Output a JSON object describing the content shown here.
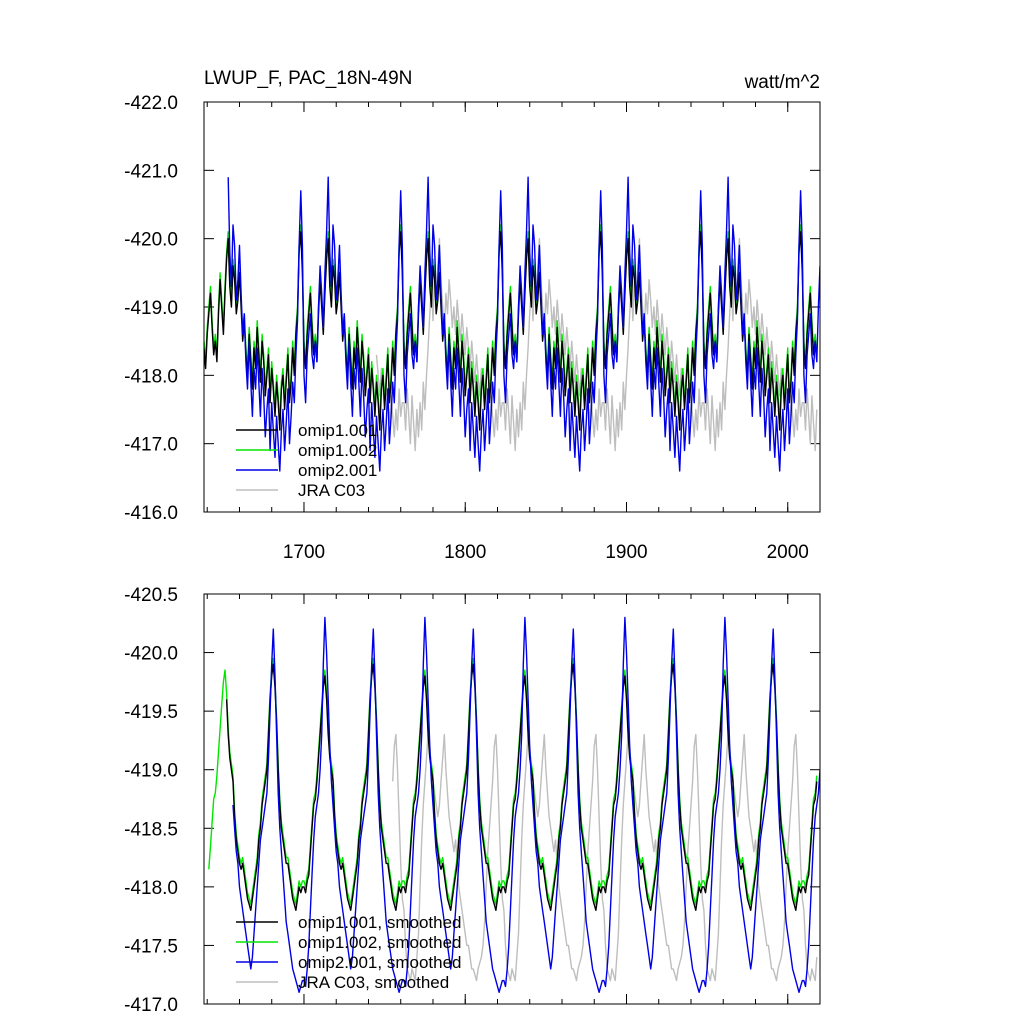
{
  "colors": {
    "omip1_001": "#000000",
    "omip1_002": "#00e600",
    "omip2_001": "#0000e6",
    "jra": "#bebebe"
  },
  "chart_data": [
    {
      "type": "line",
      "title": "LWUP_F, PAC_18N-49N",
      "units": "watt/m^2",
      "xlim": [
        1638,
        2020
      ],
      "ylim": [
        -422.0,
        -416.0
      ],
      "x_ticks": [
        1700,
        1800,
        1900,
        2000
      ],
      "y_ticks": [
        -416.0,
        -417.0,
        -418.0,
        -419.0,
        -420.0,
        -421.0,
        -422.0
      ],
      "y_tick_labels": [
        "-416.0",
        "-417.0",
        "-418.0",
        "-419.0",
        "-420.0",
        "-421.0",
        "-422.0"
      ],
      "x_tick_labels": [
        "1700",
        "1800",
        "1900",
        "2000"
      ],
      "legend": [
        "omip1.001",
        "omip1.002",
        "omip2.001",
        "JRA C03"
      ],
      "legend_position": "bottom-left",
      "cycle_years": 62,
      "series": [
        {
          "name": "omip1.001",
          "start": 1638,
          "end": 2018,
          "cycle": [
            -418.4,
            -418.1,
            -418.6,
            -418.9,
            -419.2,
            -418.7,
            -418.3,
            -418.5,
            -418.2,
            -418.9,
            -419.4,
            -419.0,
            -418.6,
            -419.2,
            -419.7,
            -420.0,
            -419.3,
            -419.0,
            -419.6,
            -419.4,
            -418.9,
            -419.1,
            -419.5,
            -419.0,
            -418.5,
            -418.8,
            -418.3,
            -418.0,
            -418.6,
            -418.2,
            -417.8,
            -418.4,
            -418.1,
            -418.7,
            -418.3,
            -417.9,
            -418.5,
            -418.2,
            -417.7,
            -418.0,
            -418.3,
            -417.6,
            -418.1,
            -417.8,
            -417.4,
            -417.9,
            -417.6,
            -417.2,
            -417.8,
            -418.0,
            -417.5,
            -417.9,
            -418.3,
            -417.6,
            -417.9,
            -418.4,
            -418.0,
            -418.6,
            -418.9,
            -419.8,
            -420.1,
            -419.5
          ]
        },
        {
          "name": "omip1.002",
          "start": 1638,
          "end": 2018,
          "cycle": [
            -418.5,
            -418.2,
            -418.7,
            -419.0,
            -419.3,
            -418.8,
            -418.4,
            -418.6,
            -418.3,
            -419.0,
            -419.5,
            -419.1,
            -418.7,
            -419.3,
            -419.8,
            -420.1,
            -419.4,
            -419.1,
            -419.7,
            -419.5,
            -419.0,
            -419.2,
            -419.6,
            -419.1,
            -418.6,
            -418.9,
            -418.4,
            -418.1,
            -418.7,
            -418.3,
            -417.9,
            -418.5,
            -418.2,
            -418.8,
            -418.4,
            -418.0,
            -418.6,
            -418.3,
            -417.8,
            -418.1,
            -418.4,
            -417.7,
            -418.2,
            -417.9,
            -417.5,
            -418.0,
            -417.7,
            -417.3,
            -417.9,
            -418.1,
            -417.6,
            -418.0,
            -418.4,
            -417.7,
            -418.0,
            -418.5,
            -418.1,
            -418.7,
            -419.0,
            -419.9,
            -420.2,
            -419.6
          ]
        },
        {
          "name": "omip2.001",
          "start": 1653,
          "end": 2020,
          "cycle": [
            -418.0,
            -417.6,
            -418.3,
            -418.6,
            -418.9,
            -418.3,
            -418.1,
            -418.5,
            -418.2,
            -419.0,
            -419.6,
            -419.2,
            -418.7,
            -419.5,
            -420.1,
            -420.9,
            -419.8,
            -419.3,
            -420.2,
            -419.9,
            -419.1,
            -419.4,
            -419.9,
            -419.2,
            -418.6,
            -418.9,
            -418.2,
            -417.8,
            -418.5,
            -417.9,
            -417.4,
            -418.1,
            -417.8,
            -418.4,
            -417.9,
            -417.4,
            -418.1,
            -417.7,
            -417.1,
            -417.5,
            -417.8,
            -416.9,
            -417.6,
            -417.2,
            -416.8,
            -417.4,
            -417.0,
            -416.6,
            -417.2,
            -417.5,
            -416.9,
            -417.3,
            -417.8,
            -417.0,
            -417.4,
            -417.9,
            -417.6,
            -418.3,
            -418.8,
            -419.9,
            -420.7,
            -419.9
          ]
        },
        {
          "name": "JRA C03",
          "start": 1745,
          "end": 2018,
          "cycle": [
            -417.6,
            -417.2,
            -417.8,
            -417.4,
            -417.0,
            -417.7,
            -417.3,
            -416.9,
            -417.5,
            -417.1,
            -417.6,
            -417.2,
            -417.9,
            -417.5,
            -418.0,
            -418.4,
            -418.9,
            -419.3,
            -418.8,
            -419.5,
            -419.1,
            -419.6,
            -420.0,
            -419.4,
            -419.0,
            -418.6,
            -419.2,
            -418.9,
            -419.4,
            -419.1,
            -418.7,
            -419.0,
            -418.6,
            -419.1,
            -418.8,
            -418.5,
            -418.9,
            -418.6,
            -418.3,
            -418.7,
            -418.4,
            -418.1,
            -418.5,
            -418.2,
            -417.9,
            -418.3,
            -418.0,
            -417.7,
            -418.1,
            -417.8,
            -417.5,
            -417.9,
            -417.6,
            -417.3,
            -417.7,
            -417.4,
            -417.1,
            -417.5,
            -417.2,
            -417.8,
            -417.4,
            -417.6
          ]
        }
      ]
    },
    {
      "type": "line",
      "title": "",
      "xlim": [
        1638,
        2020
      ],
      "ylim": [
        -420.5,
        -417.0
      ],
      "x_ticks": [
        1700,
        1800,
        1900,
        2000
      ],
      "y_ticks": [
        -417.0,
        -417.5,
        -418.0,
        -418.5,
        -419.0,
        -419.5,
        -420.0,
        -420.5
      ],
      "y_tick_labels": [
        "-417.0",
        "-417.5",
        "-418.0",
        "-418.5",
        "-419.0",
        "-419.5",
        "-420.0",
        "-420.5"
      ],
      "legend": [
        "omip1.001, smoothed",
        "omip1.002, smoothed",
        "omip2.001, smoothed",
        "JRA C03, smoothed"
      ],
      "legend_position": "bottom-left",
      "cycle_years": 62,
      "series": [
        {
          "name": "omip1.001, smoothed",
          "start": 1652,
          "end": 2018,
          "cycle": [
            -418.0,
            -417.95,
            -418.05,
            -418.1,
            -418.3,
            -418.5,
            -418.7,
            -418.75,
            -418.9,
            -419.1,
            -419.3,
            -419.5,
            -419.7,
            -419.8,
            -419.6,
            -419.3,
            -419.1,
            -419.0,
            -418.9,
            -418.6,
            -418.4,
            -418.3,
            -418.2,
            -418.15,
            -418.2,
            -418.1,
            -418.0,
            -417.9,
            -417.85,
            -417.8,
            -417.9,
            -418.0,
            -418.1,
            -418.2,
            -418.4,
            -418.5,
            -418.7,
            -418.8,
            -418.9,
            -419.0,
            -419.3,
            -419.6,
            -419.8,
            -419.9,
            -419.7,
            -419.4,
            -419.0,
            -418.7,
            -418.5,
            -418.4,
            -418.3,
            -418.2,
            -418.2,
            -418.1,
            -418.0,
            -417.9,
            -417.85,
            -417.8,
            -417.9,
            -418.0,
            -417.95,
            -418.0
          ]
        },
        {
          "name": "omip1.002, smoothed",
          "start": 1641,
          "end": 2018,
          "cycle": [
            -418.05,
            -418.0,
            -418.1,
            -418.15,
            -418.35,
            -418.55,
            -418.75,
            -418.8,
            -418.95,
            -419.15,
            -419.35,
            -419.55,
            -419.75,
            -419.85,
            -419.65,
            -419.35,
            -419.15,
            -419.05,
            -418.95,
            -418.65,
            -418.45,
            -418.35,
            -418.25,
            -418.2,
            -418.25,
            -418.15,
            -418.05,
            -417.95,
            -417.9,
            -417.85,
            -417.95,
            -418.05,
            -418.15,
            -418.25,
            -418.45,
            -418.55,
            -418.75,
            -418.85,
            -418.95,
            -419.05,
            -419.35,
            -419.65,
            -419.85,
            -419.95,
            -419.75,
            -419.45,
            -419.05,
            -418.75,
            -418.55,
            -418.45,
            -418.35,
            -418.25,
            -418.25,
            -418.15,
            -418.05,
            -417.95,
            -417.9,
            -417.85,
            -417.95,
            -418.05,
            -418.0,
            -418.05
          ]
        },
        {
          "name": "omip2.001, smoothed",
          "start": 1656,
          "end": 2020,
          "cycle": [
            -417.2,
            -417.15,
            -417.3,
            -417.5,
            -417.8,
            -418.1,
            -418.4,
            -418.6,
            -418.7,
            -418.8,
            -419.0,
            -419.3,
            -419.9,
            -420.3,
            -420.0,
            -419.6,
            -419.2,
            -418.9,
            -418.7,
            -418.5,
            -418.3,
            -418.2,
            -418.0,
            -417.9,
            -417.8,
            -417.7,
            -417.6,
            -417.5,
            -417.4,
            -417.3,
            -417.4,
            -417.6,
            -417.8,
            -418.0,
            -418.2,
            -418.4,
            -418.5,
            -418.6,
            -418.7,
            -418.8,
            -419.1,
            -419.5,
            -419.9,
            -420.2,
            -419.8,
            -419.3,
            -418.8,
            -418.5,
            -418.3,
            -418.1,
            -417.9,
            -417.7,
            -417.6,
            -417.5,
            -417.4,
            -417.3,
            -417.25,
            -417.2,
            -417.15,
            -417.1,
            -417.15,
            -417.2
          ]
        },
        {
          "name": "JRA C03, smoothed",
          "start": 1755,
          "end": 2018,
          "cycle": [
            -417.8,
            -417.5,
            -417.3,
            -417.25,
            -417.2,
            -417.3,
            -417.25,
            -417.2,
            -417.4,
            -417.6,
            -418.0,
            -418.4,
            -418.7,
            -418.9,
            -419.1,
            -419.3,
            -419.2,
            -419.0,
            -418.9,
            -418.8,
            -418.7,
            -418.6,
            -418.7,
            -418.9,
            -419.1,
            -419.3,
            -419.0,
            -418.8,
            -418.6,
            -418.5,
            -418.4,
            -418.3,
            -418.4,
            -418.2,
            -418.0,
            -417.9,
            -417.8,
            -417.7,
            -417.6,
            -417.5,
            -417.5,
            -417.4,
            -417.3,
            -417.3,
            -417.25,
            -417.2,
            -417.3,
            -417.35,
            -417.4,
            -417.5,
            -417.7,
            -418.0,
            -418.3,
            -418.5,
            -418.7,
            -418.9,
            -419.2,
            -419.3,
            -419.0,
            -418.6,
            -418.2,
            -417.9
          ]
        }
      ]
    }
  ]
}
